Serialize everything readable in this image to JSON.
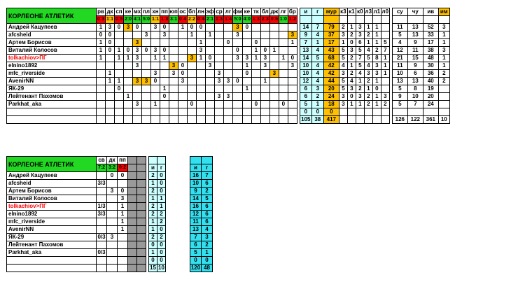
{
  "team_name": "КОРЛЕОНЕ АТЛЕТИК",
  "main": {
    "opponents": [
      {
        "code": "рв",
        "score": "0:3",
        "color": "r"
      },
      {
        "code": "дк",
        "score": "1:1",
        "color": "y"
      },
      {
        "code": "сп",
        "score": "0:5",
        "color": "r"
      },
      {
        "code": "ке",
        "score": "2:0",
        "color": "g"
      },
      {
        "code": "мх",
        "score": "4:1",
        "color": "g"
      },
      {
        "code": "пл",
        "score": "5:0",
        "color": "g"
      },
      {
        "code": "хн",
        "score": "1:1",
        "color": "y"
      },
      {
        "code": "пп",
        "score": "1:3",
        "color": "r"
      },
      {
        "code": "юп",
        "score": "3:1",
        "color": "g"
      },
      {
        "code": "ос",
        "score": "0:4",
        "color": "r"
      },
      {
        "code": "бл",
        "score": "2:2",
        "color": "y"
      },
      {
        "code": "лн",
        "score": "0:4",
        "color": "r"
      },
      {
        "code": "эф",
        "score": "2:1",
        "color": "g"
      },
      {
        "code": "ср",
        "score": "1:3",
        "color": "r"
      },
      {
        "code": "лг",
        "score": "1:4",
        "color": "r"
      },
      {
        "code": "фм",
        "score": "5:0",
        "color": "g"
      },
      {
        "code": "ке",
        "score": "4:0",
        "color": "g"
      },
      {
        "code": "тк",
        "score": "1:3",
        "color": "r"
      },
      {
        "code": "бл",
        "score": "2:3",
        "color": "r"
      },
      {
        "code": "дж",
        "score": "0:5",
        "color": "r"
      },
      {
        "code": "лг",
        "score": "1:0",
        "color": "g"
      },
      {
        "code": "бр",
        "score": "1:2",
        "color": "r"
      }
    ],
    "stat_headers": [
      "и",
      "г",
      "мур",
      "к3",
      "к1",
      "к0",
      "л3",
      "л1",
      "л0",
      "",
      "су",
      "чу",
      "ив",
      "им"
    ],
    "players": [
      {
        "name": "Андрей Кацупеев",
        "red": false,
        "m": [
          "1",
          "3",
          "0",
          "3",
          "0",
          "",
          "3",
          "0",
          "",
          "1",
          "0",
          "0",
          "",
          "",
          "",
          "3",
          "0",
          "",
          "",
          "",
          "",
          ""
        ],
        "hl": [
          3,
          15
        ],
        "s": [
          "14",
          "7",
          "79",
          "2",
          "1",
          "3",
          "1",
          "1",
          "",
          "",
          "11",
          "13",
          "52",
          "3"
        ]
      },
      {
        "name": "afcsheid",
        "red": false,
        "m": [
          "0",
          "0",
          "",
          "",
          "",
          "3",
          "",
          "3",
          "",
          "",
          "1",
          "",
          "1",
          "",
          "",
          "3",
          "",
          "",
          "",
          "",
          "",
          "3"
        ],
        "hl": [
          21
        ],
        "s": [
          "9",
          "4",
          "37",
          "3",
          "2",
          "3",
          "2",
          "1",
          "",
          "",
          "5",
          "13",
          "33",
          "1"
        ]
      },
      {
        "name": "Артем Борисов",
        "red": false,
        "m": [
          "1",
          "0",
          "",
          "",
          "3",
          "",
          "",
          "",
          "",
          "",
          "",
          "1",
          "",
          "",
          "0",
          "",
          "",
          "0",
          "",
          "",
          "",
          "1"
        ],
        "hl": [
          4
        ],
        "s": [
          "7",
          "1",
          "17",
          "1",
          "0",
          "6",
          "1",
          "1",
          "5",
          "",
          "4",
          "9",
          "17",
          "1"
        ]
      },
      {
        "name": "Виталий Колосов",
        "red": false,
        "m": [
          "1",
          "0",
          "1",
          "0",
          "3",
          "0",
          "3",
          "0",
          "",
          "",
          "",
          "3",
          "",
          "",
          "",
          "0",
          "",
          "1",
          "0",
          "1",
          "",
          ""
        ],
        "hl": [],
        "s": [
          "13",
          "4",
          "43",
          "5",
          "3",
          "5",
          "4",
          "2",
          "7",
          "",
          "12",
          "11",
          "38",
          "3"
        ]
      },
      {
        "name": "tolkachiov>ПГ",
        "red": true,
        "m": [
          "1",
          "",
          "1",
          "1",
          "3",
          "",
          "1",
          "1",
          "",
          "",
          "3",
          "1",
          "0",
          "",
          "",
          "3",
          "3",
          "1",
          "3",
          "",
          "1",
          "0"
        ],
        "hl": [
          10
        ],
        "s": [
          "14",
          "5",
          "68",
          "5",
          "2",
          "7",
          "5",
          "8",
          "1",
          "",
          "21",
          "15",
          "48",
          "1"
        ]
      },
      {
        "name": "elnino1892",
        "red": false,
        "m": [
          "",
          "",
          "",
          "",
          "3",
          "",
          "",
          "",
          "3",
          "0",
          "",
          "",
          "3",
          "",
          "",
          "",
          "1",
          "",
          "3",
          "",
          "",
          "3"
        ],
        "hl": [
          8
        ],
        "s": [
          "10",
          "4",
          "42",
          "4",
          "1",
          "5",
          "4",
          "3",
          "1",
          "",
          "11",
          "9",
          "30",
          "1"
        ]
      },
      {
        "name": "mfc_riverside",
        "red": false,
        "m": [
          "",
          "1",
          "",
          "",
          "",
          "",
          "3",
          "",
          "3",
          "0",
          "",
          "",
          "",
          "3",
          "",
          "",
          "0",
          "",
          "",
          "3",
          "",
          ""
        ],
        "hl": [
          19
        ],
        "s": [
          "10",
          "4",
          "42",
          "3",
          "2",
          "4",
          "3",
          "3",
          "1",
          "",
          "10",
          "6",
          "36",
          "2"
        ]
      },
      {
        "name": "AvenirNN",
        "red": false,
        "m": [
          "",
          "1",
          "1",
          "",
          "3",
          "3",
          "0",
          "",
          "",
          "3",
          "",
          "",
          "",
          "3",
          "3",
          "0",
          "",
          "",
          "1",
          "",
          "",
          ""
        ],
        "hl": [
          4,
          5
        ],
        "s": [
          "12",
          "4",
          "44",
          "5",
          "4",
          "1",
          "2",
          "1",
          "",
          "",
          "13",
          "13",
          "40",
          "2"
        ]
      },
      {
        "name": "ЯК-29",
        "red": false,
        "m": [
          "",
          "",
          "0",
          "",
          "",
          "",
          "",
          "1",
          "",
          "",
          "",
          "",
          "",
          "",
          "",
          "",
          "1",
          "",
          "",
          "",
          "",
          ""
        ],
        "hl": [],
        "s": [
          "6",
          "3",
          "20",
          "5",
          "3",
          "2",
          "1",
          "0",
          "",
          "",
          "5",
          "8",
          "19",
          ""
        ]
      },
      {
        "name": "Лейтенант Пахомов",
        "red": false,
        "m": [
          "",
          "",
          "",
          "1",
          "",
          "",
          "",
          "0",
          "",
          "",
          "",
          "",
          "",
          "3",
          "3",
          "",
          "",
          "",
          "",
          "",
          "",
          ""
        ],
        "hl": [],
        "s": [
          "6",
          "2",
          "24",
          "3",
          "0",
          "3",
          "2",
          "1",
          "3",
          "",
          "9",
          "10",
          "20",
          ""
        ]
      },
      {
        "name": "Parkhat_aka",
        "red": false,
        "m": [
          "",
          "",
          "",
          "",
          "3",
          "",
          "1",
          "",
          "",
          "",
          "0",
          "",
          "",
          "",
          "",
          "",
          "",
          "0",
          "",
          "",
          "0",
          ""
        ],
        "hl": [],
        "s": [
          "5",
          "1",
          "18",
          "3",
          "1",
          "1",
          "2",
          "1",
          "2",
          "",
          "5",
          "7",
          "24",
          ""
        ]
      },
      {
        "name": "",
        "red": false,
        "m": [
          "",
          "",
          "",
          "",
          "",
          "",
          "",
          "",
          "",
          "",
          "",
          "",
          "",
          "",
          "",
          "",
          "",
          "",
          "",
          "",
          "",
          ""
        ],
        "hl": [],
        "s": [
          "0",
          "0",
          "0",
          "",
          "",
          "",
          "",
          "",
          "",
          "",
          "",
          "",
          "",
          ""
        ]
      }
    ],
    "totals": [
      "105",
      "38",
      "417",
      "",
      "",
      "",
      "",
      "",
      "",
      "",
      "126",
      "122",
      "361",
      "10"
    ]
  },
  "cup": {
    "cols": [
      {
        "code": "св",
        "score": "7:2",
        "color": "g"
      },
      {
        "code": "дк",
        "score": "3:2",
        "color": "g"
      },
      {
        "code": "пп",
        "score": "0:2",
        "color": "r"
      }
    ],
    "ig_headers": [
      "и",
      "г"
    ],
    "players": [
      {
        "name": "Андрей Кацупеев",
        "m": [
          "",
          "0",
          "0"
        ],
        "ig": [
          "2",
          "0"
        ],
        "t": [
          "16",
          "7"
        ]
      },
      {
        "name": "afcsheid",
        "m": [
          "3/3",
          "",
          ""
        ],
        "ig": [
          "1",
          "0"
        ],
        "t": [
          "10",
          "6"
        ]
      },
      {
        "name": "Артем Борисов",
        "m": [
          "",
          "3",
          "0"
        ],
        "ig": [
          "2",
          "0"
        ],
        "t": [
          "9",
          "2"
        ]
      },
      {
        "name": "Виталий Колосов",
        "m": [
          "",
          "",
          "3"
        ],
        "ig": [
          "1",
          "1"
        ],
        "t": [
          "14",
          "5"
        ]
      },
      {
        "name": "tolkachiov>ПГ",
        "m": [
          "1/3",
          "",
          "1"
        ],
        "ig": [
          "2",
          "1"
        ],
        "t": [
          "16",
          "6"
        ]
      },
      {
        "name": "elnino1892",
        "m": [
          "3/3",
          "",
          "1"
        ],
        "ig": [
          "2",
          "2"
        ],
        "t": [
          "12",
          "6"
        ]
      },
      {
        "name": "mfc_riverside",
        "m": [
          "",
          "",
          "1"
        ],
        "ig": [
          "1",
          "2"
        ],
        "t": [
          "11",
          "6"
        ]
      },
      {
        "name": "AvenirNN",
        "m": [
          "",
          "",
          "1"
        ],
        "ig": [
          "1",
          "0"
        ],
        "t": [
          "13",
          "4"
        ]
      },
      {
        "name": "ЯК-29",
        "m": [
          "0/3",
          "3",
          ""
        ],
        "ig": [
          "2",
          "2"
        ],
        "t": [
          "7",
          "3"
        ]
      },
      {
        "name": "Лейтенант Пахомов",
        "m": [
          "",
          "",
          ""
        ],
        "ig": [
          "0",
          "0"
        ],
        "t": [
          "6",
          "2"
        ]
      },
      {
        "name": "Parkhat_aka",
        "m": [
          "0/3",
          "",
          ""
        ],
        "ig": [
          "1",
          "0"
        ],
        "t": [
          "5",
          "1"
        ]
      },
      {
        "name": "",
        "m": [
          "",
          "",
          ""
        ],
        "ig": [
          "0",
          "0"
        ],
        "t": [
          "0",
          "0"
        ]
      }
    ],
    "totals_ig": [
      "15",
      "10"
    ],
    "totals_t": [
      "120",
      "48"
    ]
  }
}
